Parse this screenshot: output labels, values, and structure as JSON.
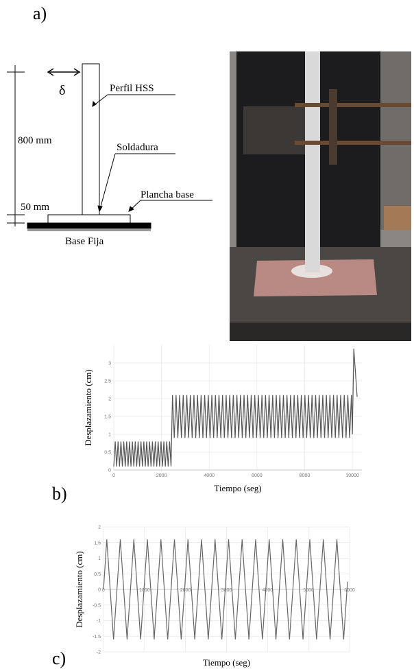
{
  "figure": {
    "panel_labels": [
      "a)",
      "b)",
      "c)"
    ],
    "diagram": {
      "displacement_symbol": "δ",
      "dimension_height": "800 mm",
      "dimension_base": "50 mm",
      "labels": [
        "Perfil HSS",
        "Soldadura",
        "Plancha base"
      ],
      "base": "Base Fija"
    }
  },
  "chart_data": [
    {
      "type": "line",
      "xlabel": "Tiempo (seg)",
      "ylabel": "Desplazamiento (cm)",
      "color": "#555555",
      "xlim": [
        0,
        10400
      ],
      "ylim": [
        0,
        3.5
      ],
      "xticks": [
        0,
        2000,
        4000,
        6000,
        8000,
        10000
      ],
      "yticks": [
        0,
        0.5,
        1,
        1.5,
        2,
        2.5,
        3
      ],
      "grid": true,
      "x": [
        0,
        60,
        120,
        180,
        240,
        300,
        360,
        420,
        480,
        540,
        600,
        660,
        720,
        780,
        840,
        900,
        960,
        1020,
        1080,
        1140,
        1200,
        1260,
        1320,
        1380,
        1440,
        1500,
        1560,
        1620,
        1680,
        1740,
        1800,
        1860,
        1920,
        1980,
        2040,
        2100,
        2160,
        2220,
        2280,
        2340,
        2400,
        2460,
        2535,
        2610,
        2685,
        2760,
        2835,
        2910,
        2985,
        3060,
        3135,
        3210,
        3285,
        3360,
        3435,
        3510,
        3585,
        3660,
        3735,
        3810,
        3885,
        3960,
        4035,
        4110,
        4185,
        4260,
        4335,
        4410,
        4485,
        4560,
        4635,
        4710,
        4785,
        4860,
        4935,
        5010,
        5085,
        5160,
        5235,
        5310,
        5385,
        5460,
        5535,
        5610,
        5685,
        5760,
        5835,
        5910,
        5985,
        6060,
        6135,
        6210,
        6285,
        6360,
        6435,
        6510,
        6585,
        6660,
        6735,
        6810,
        6885,
        6960,
        7035,
        7110,
        7185,
        7260,
        7335,
        7410,
        7485,
        7560,
        7635,
        7710,
        7785,
        7860,
        7935,
        8010,
        8085,
        8160,
        8235,
        8310,
        8385,
        8460,
        8535,
        8610,
        8685,
        8760,
        8835,
        8910,
        8985,
        9060,
        9135,
        9210,
        9285,
        9360,
        9435,
        9510,
        9585,
        9660,
        9735,
        9810,
        9885,
        9960,
        10000,
        10060,
        10200
      ],
      "values": [
        0.1,
        0.8,
        0.1,
        0.8,
        0.1,
        0.8,
        0.1,
        0.8,
        0.1,
        0.8,
        0.1,
        0.8,
        0.1,
        0.8,
        0.1,
        0.8,
        0.1,
        0.8,
        0.1,
        0.8,
        0.1,
        0.8,
        0.1,
        0.8,
        0.1,
        0.8,
        0.1,
        0.8,
        0.1,
        0.8,
        0.1,
        0.8,
        0.1,
        0.8,
        0.1,
        0.8,
        0.1,
        0.8,
        0.1,
        0.8,
        0.1,
        2.1,
        0.9,
        2.1,
        0.9,
        2.1,
        0.9,
        2.1,
        0.9,
        2.1,
        0.9,
        2.1,
        0.9,
        2.1,
        0.9,
        2.1,
        0.9,
        2.1,
        0.9,
        2.1,
        0.9,
        2.1,
        0.9,
        2.1,
        0.9,
        2.1,
        0.9,
        2.1,
        0.9,
        2.1,
        0.9,
        2.1,
        0.9,
        2.1,
        0.9,
        2.1,
        0.9,
        2.1,
        0.9,
        2.1,
        0.9,
        2.1,
        0.9,
        2.1,
        0.9,
        2.1,
        0.9,
        2.1,
        0.9,
        2.1,
        0.9,
        2.1,
        0.9,
        2.1,
        0.9,
        2.1,
        0.9,
        2.1,
        0.9,
        2.1,
        0.9,
        2.1,
        0.9,
        2.1,
        0.9,
        2.1,
        0.9,
        2.1,
        0.9,
        2.1,
        0.9,
        2.1,
        0.9,
        2.1,
        0.9,
        2.1,
        0.9,
        2.1,
        0.9,
        2.1,
        0.9,
        2.1,
        0.9,
        2.1,
        0.9,
        2.1,
        0.9,
        2.1,
        0.9,
        2.1,
        0.9,
        2.1,
        0.9,
        2.1,
        0.9,
        2.1,
        0.9,
        2.1,
        0.9,
        2.1,
        0.9,
        2.1,
        1.0,
        3.4,
        2.05
      ]
    },
    {
      "type": "line",
      "xlabel": "Tiempo (seg)",
      "ylabel": "Desplazamiento (cm)",
      "color": "#666666",
      "xlim": [
        0,
        6000
      ],
      "ylim": [
        -2,
        2
      ],
      "xticks": [
        0,
        1000,
        2000,
        3000,
        4000,
        5000,
        6000
      ],
      "yticks": [
        -2,
        -1.5,
        -1,
        -0.5,
        0,
        0.5,
        1,
        1.5,
        2
      ],
      "grid": true,
      "x": [
        0,
        80,
        245,
        410,
        575,
        740,
        905,
        1070,
        1235,
        1400,
        1565,
        1730,
        1895,
        2060,
        2225,
        2390,
        2555,
        2720,
        2885,
        3050,
        3215,
        3380,
        3545,
        3710,
        3875,
        4040,
        4205,
        4370,
        4535,
        4700,
        4865,
        5030,
        5195,
        5360,
        5525,
        5690,
        5855,
        5950
      ],
      "values": [
        0,
        1.6,
        -1.6,
        1.6,
        -1.6,
        1.6,
        -1.6,
        1.6,
        -1.6,
        1.6,
        -1.6,
        1.6,
        -1.6,
        1.6,
        -1.6,
        1.6,
        -1.6,
        1.6,
        -1.6,
        1.6,
        -1.6,
        1.6,
        -1.6,
        1.6,
        -1.6,
        1.6,
        -1.6,
        1.6,
        -1.6,
        1.6,
        -1.6,
        1.6,
        -1.6,
        1.6,
        -1.6,
        1.6,
        -1.6,
        0.25
      ]
    }
  ]
}
